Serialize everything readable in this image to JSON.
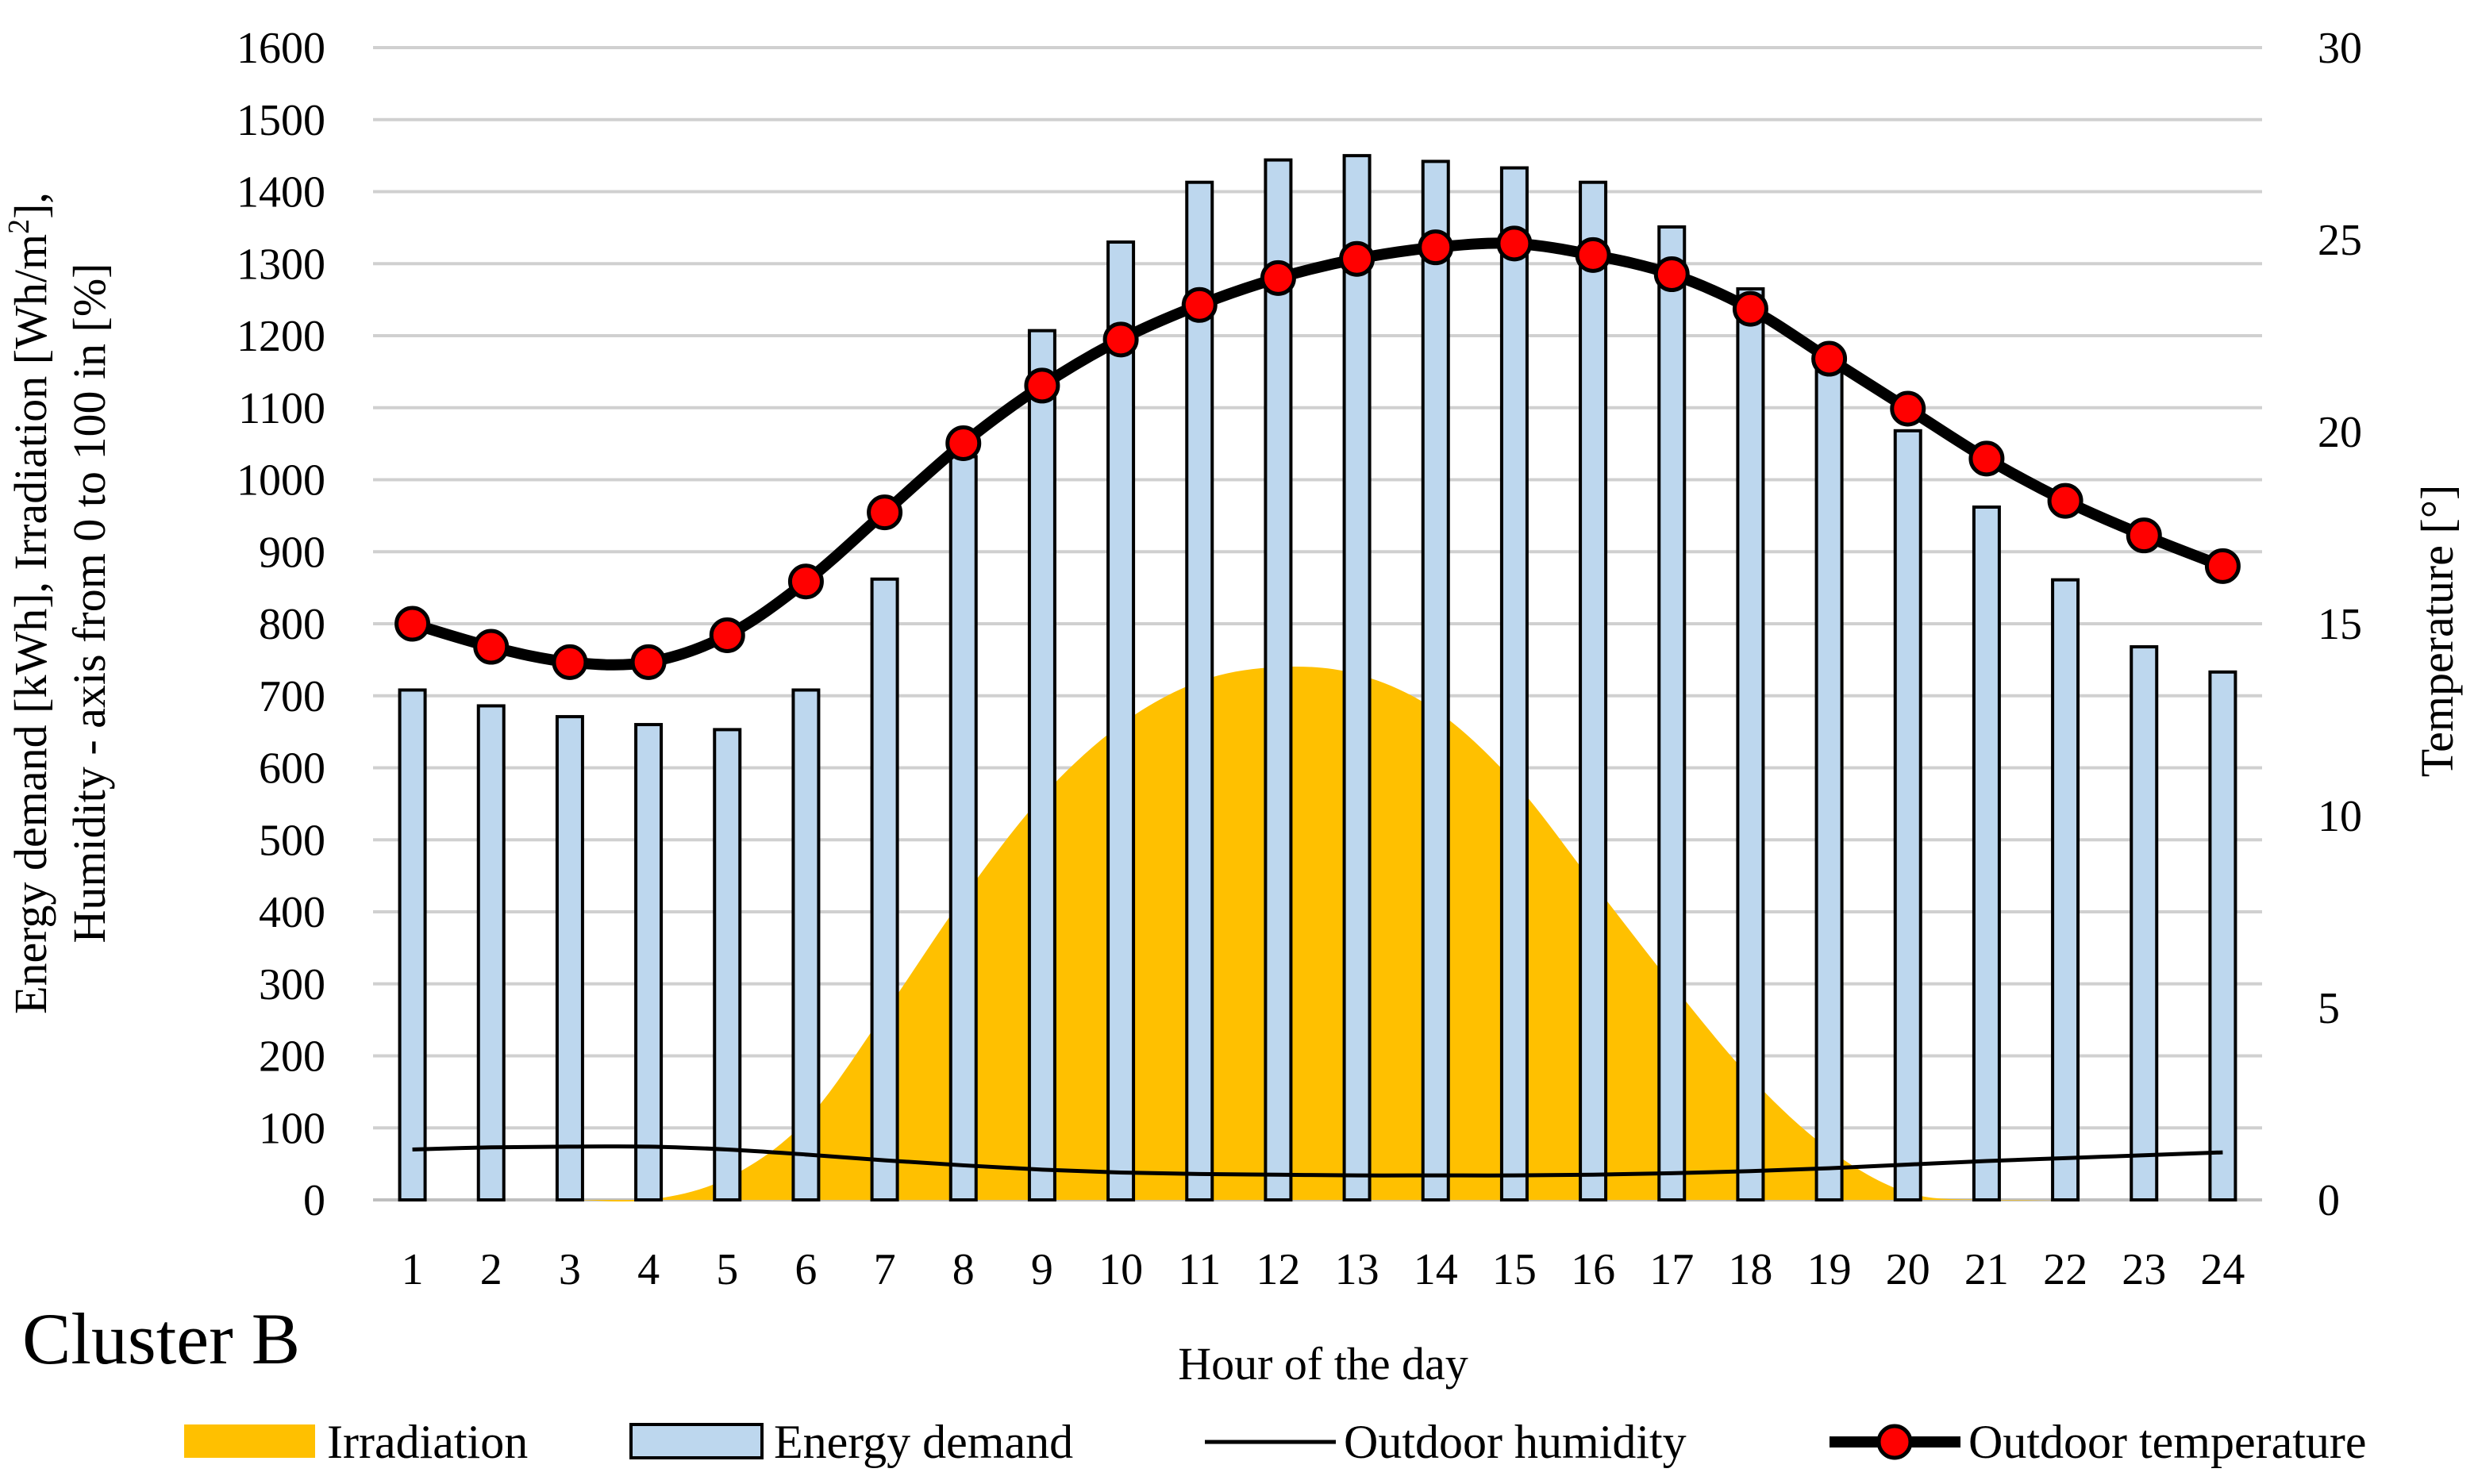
{
  "chart_data": {
    "type": "bar",
    "title": "",
    "annotation": "Cluster B",
    "xlabel": "Hour of the day",
    "ylabel_left_line1": "Energy demand [kWh], Irradiation [Wh/m",
    "ylabel_left_sup": "2",
    "ylabel_left_line1_end": "],",
    "ylabel_left_line2": "Humidity - axis from 0 to 100 in [%]",
    "ylabel_right": "Temperature [°]",
    "ylim_left": [
      0,
      1600
    ],
    "ylim_right": [
      0,
      30
    ],
    "yticks_left": [
      "0",
      "100",
      "200",
      "300",
      "400",
      "500",
      "600",
      "700",
      "800",
      "900",
      "1000",
      "1100",
      "1200",
      "1300",
      "1400",
      "1500",
      "1600"
    ],
    "yticks_right": [
      "0",
      "5",
      "10",
      "15",
      "20",
      "25",
      "30"
    ],
    "categories": [
      "1",
      "2",
      "3",
      "4",
      "5",
      "6",
      "7",
      "8",
      "9",
      "10",
      "11",
      "12",
      "13",
      "14",
      "15",
      "16",
      "17",
      "18",
      "19",
      "20",
      "21",
      "22",
      "23",
      "24"
    ],
    "grid": true,
    "legend_position": "bottom",
    "series": [
      {
        "name": "Irradiation",
        "kind": "area",
        "axis": "left",
        "color": "#FFC000",
        "values": [
          0,
          0,
          0,
          0,
          30,
          110,
          260,
          420,
          560,
          660,
          720,
          740,
          730,
          680,
          580,
          440,
          300,
          170,
          70,
          10,
          0,
          0,
          0,
          0
        ]
      },
      {
        "name": "Energy demand",
        "kind": "bar",
        "axis": "left",
        "color": "#BDD7EE",
        "values": [
          708,
          686,
          671,
          660,
          653,
          708,
          862,
          1032,
          1207,
          1330,
          1413,
          1444,
          1450,
          1442,
          1433,
          1413,
          1351,
          1265,
          1172,
          1068,
          962,
          861,
          768,
          733
        ]
      },
      {
        "name": "Outdoor humidity",
        "kind": "line",
        "axis": "left",
        "color": "#000000",
        "values": [
          70,
          73,
          74,
          74,
          70,
          63,
          55,
          48,
          42,
          38,
          36,
          35,
          34,
          34,
          34,
          35,
          37,
          40,
          44,
          49,
          54,
          58,
          62,
          66
        ]
      },
      {
        "name": "Outdoor temperature",
        "kind": "line-marker",
        "axis": "right",
        "color": "#000000",
        "marker_color": "#FF0000",
        "values": [
          15.0,
          14.4,
          14.0,
          14.0,
          14.7,
          16.1,
          17.9,
          19.7,
          21.2,
          22.4,
          23.3,
          24.0,
          24.5,
          24.8,
          24.9,
          24.6,
          24.1,
          23.2,
          21.9,
          20.6,
          19.3,
          18.2,
          17.3,
          16.5
        ]
      }
    ]
  }
}
